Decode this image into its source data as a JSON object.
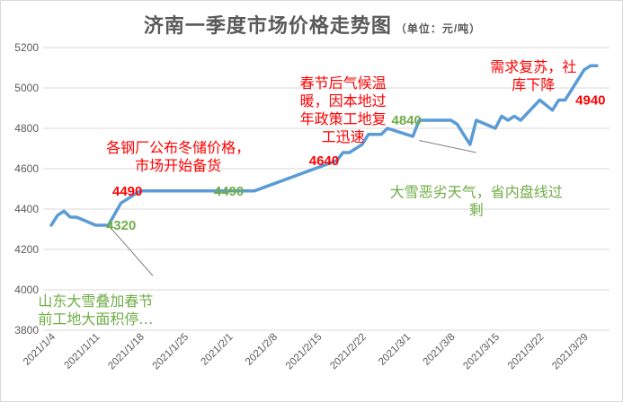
{
  "title": "济南一季度市场价格走势图",
  "unit_label": "（单位：元/吨）",
  "colors": {
    "line": "#5b9bd5",
    "red": "#ff0000",
    "green": "#70ad47",
    "grid": "#d9d9d9",
    "text": "#595959",
    "leader": "#808080"
  },
  "chart_data": {
    "type": "line",
    "title": "济南一季度市场价格走势图",
    "unit": "元/吨",
    "ylim": [
      3800,
      5200
    ],
    "yticks": [
      3800,
      4000,
      4200,
      4400,
      4600,
      4800,
      5000,
      5200
    ],
    "xtick_labels": [
      "2021/1/4",
      "2021/1/11",
      "2021/1/18",
      "2021/1/25",
      "2021/2/1",
      "2021/2/8",
      "2021/2/15",
      "2021/2/22",
      "2021/3/1",
      "2021/3/8",
      "2021/3/15",
      "2021/3/22",
      "2021/3/29"
    ],
    "grid": true,
    "points": [
      [
        "2021/1/4",
        4320
      ],
      [
        "2021/1/5",
        4370
      ],
      [
        "2021/1/6",
        4390
      ],
      [
        "2021/1/7",
        4360
      ],
      [
        "2021/1/8",
        4360
      ],
      [
        "2021/1/11",
        4320
      ],
      [
        "2021/1/12",
        4320
      ],
      [
        "2021/1/13",
        4320
      ],
      [
        "2021/1/15",
        4430
      ],
      [
        "2021/1/18",
        4490
      ],
      [
        "2021/1/19",
        4490
      ],
      [
        "2021/1/25",
        4490
      ],
      [
        "2021/2/1",
        4490
      ],
      [
        "2021/2/5",
        4490
      ],
      [
        "2021/2/18",
        4640
      ],
      [
        "2021/2/19",
        4680
      ],
      [
        "2021/2/20",
        4680
      ],
      [
        "2021/2/22",
        4720
      ],
      [
        "2021/2/23",
        4770
      ],
      [
        "2021/2/25",
        4770
      ],
      [
        "2021/2/26",
        4800
      ],
      [
        "2021/3/1",
        4770
      ],
      [
        "2021/3/2",
        4760
      ],
      [
        "2021/3/3",
        4840
      ],
      [
        "2021/3/8",
        4840
      ],
      [
        "2021/3/9",
        4820
      ],
      [
        "2021/3/10",
        4770
      ],
      [
        "2021/3/11",
        4720
      ],
      [
        "2021/3/12",
        4840
      ],
      [
        "2021/3/15",
        4800
      ],
      [
        "2021/3/16",
        4860
      ],
      [
        "2021/3/17",
        4840
      ],
      [
        "2021/3/18",
        4860
      ],
      [
        "2021/3/19",
        4840
      ],
      [
        "2021/3/22",
        4940
      ],
      [
        "2021/3/24",
        4890
      ],
      [
        "2021/3/25",
        4940
      ],
      [
        "2021/3/26",
        4940
      ],
      [
        "2021/3/29",
        5090
      ],
      [
        "2021/3/30",
        5110
      ],
      [
        "2021/3/31",
        5110
      ]
    ],
    "value_labels": [
      {
        "date": "2021/1/16",
        "value": 4490,
        "text": "4490",
        "color": "red"
      },
      {
        "date": "2021/1/15",
        "value": 4320,
        "text": "4320",
        "color": "green"
      },
      {
        "date": "2021/2/1",
        "value": 4490,
        "text": "4490",
        "color": "green"
      },
      {
        "date": "2021/2/16",
        "value": 4640,
        "text": "4640",
        "color": "red"
      },
      {
        "date": "2021/3/1",
        "value": 4840,
        "text": "4840",
        "color": "green"
      },
      {
        "date": "2021/3/30",
        "value": 4940,
        "text": "4940",
        "color": "red"
      }
    ],
    "annotations": [
      {
        "lines": [
          "各钢厂公布冬储价格，",
          "市场开始备货"
        ],
        "color": "red",
        "date": "2021/1/24",
        "value": 4680
      },
      {
        "lines": [
          "春节后气候温",
          "暖，因本地过",
          "年政策工地复",
          "工迅速"
        ],
        "color": "red",
        "date": "2021/2/19",
        "value": 5000
      },
      {
        "lines": [
          "需求复苏，社",
          "库下降"
        ],
        "color": "red",
        "date": "2021/3/21",
        "value": 5080
      },
      {
        "lines": [
          "大雪恶劣天气，省内盘线过",
          "剩"
        ],
        "color": "green",
        "date": "2021/3/12",
        "value": 4460
      },
      {
        "lines": [
          "山东大雪叠加春节",
          "前工地大面积停…"
        ],
        "color": "green",
        "date": "2021/1/11",
        "value": 3920
      }
    ],
    "leaders": [
      {
        "from": [
          "2021/1/13",
          4320
        ],
        "to": [
          "2021/1/20",
          4070
        ]
      },
      {
        "from": [
          "2021/3/3",
          4740
        ],
        "to": [
          "2021/3/12",
          4680
        ]
      }
    ]
  }
}
